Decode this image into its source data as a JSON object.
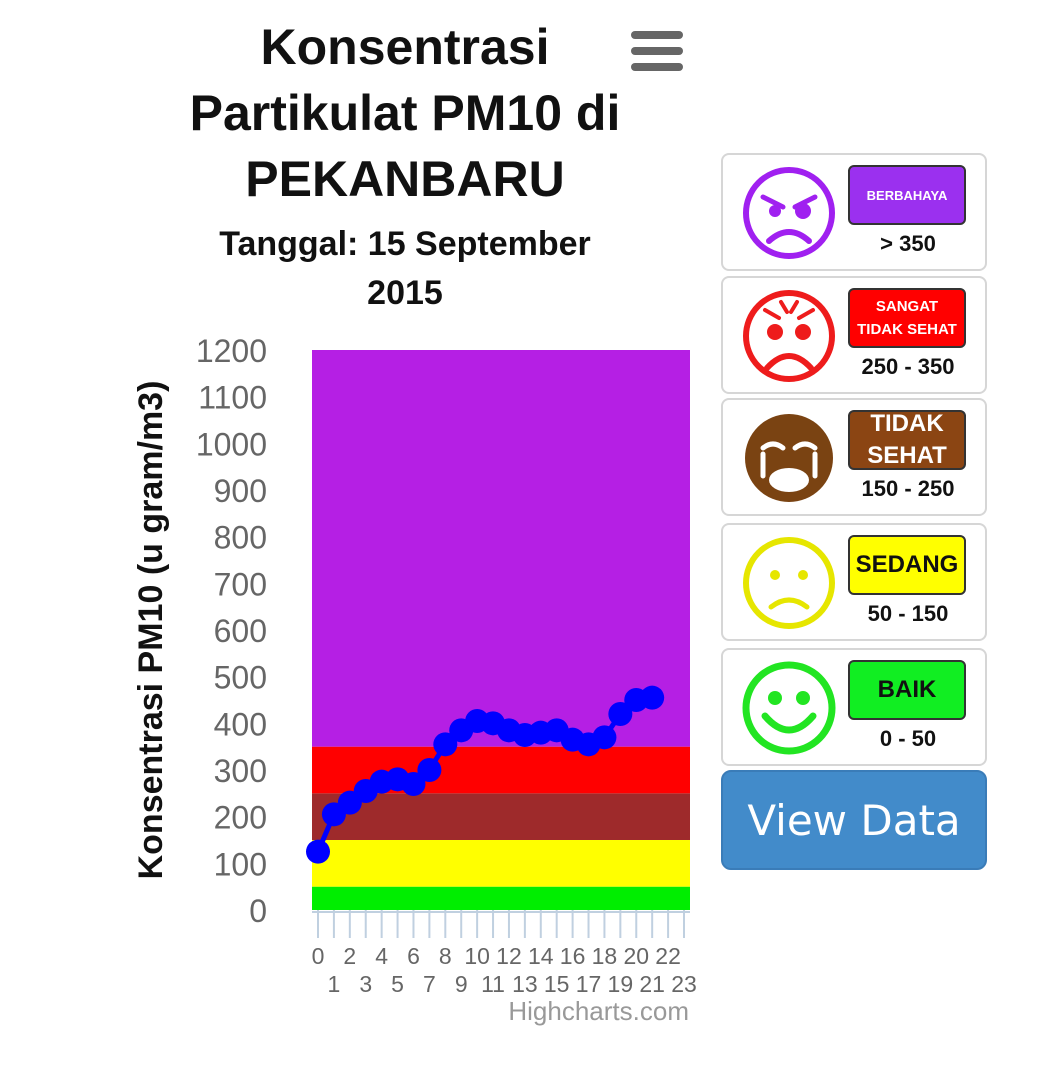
{
  "header": {
    "title": "Konsentrasi Partikulat PM10 di PEKANBARU",
    "subtitle": "Tanggal: 15 September 2015",
    "menu_icon": "hamburger-icon"
  },
  "chart_data": {
    "type": "line",
    "title": "Konsentrasi Partikulat PM10 di PEKANBARU",
    "subtitle": "Tanggal: 15 September 2015",
    "ylabel": "Konsentrasi PM10 (u gram/m3)",
    "xlabel": "",
    "ylim": [
      0,
      1200
    ],
    "yticks": [
      0,
      100,
      200,
      300,
      400,
      500,
      600,
      700,
      800,
      900,
      1000,
      1100,
      1200
    ],
    "xlim": [
      0,
      23
    ],
    "xticks": [
      "0",
      "1",
      "2",
      "3",
      "4",
      "5",
      "6",
      "7",
      "8",
      "9",
      "10",
      "11",
      "12",
      "13",
      "14",
      "15",
      "16",
      "17",
      "18",
      "19",
      "20",
      "21",
      "22",
      "23"
    ],
    "series": [
      {
        "x": [
          0,
          1,
          2,
          3,
          4,
          5,
          6,
          7,
          8,
          9,
          10,
          11,
          12,
          13,
          14,
          15,
          16,
          17,
          18,
          19,
          20,
          21
        ],
        "y": [
          125,
          205,
          230,
          255,
          275,
          280,
          270,
          300,
          355,
          385,
          405,
          400,
          385,
          375,
          380,
          385,
          365,
          355,
          370,
          420,
          450,
          455
        ],
        "color": "#0000ff"
      }
    ],
    "plot_bands": [
      {
        "from": 0,
        "to": 50,
        "color": "#00ee00"
      },
      {
        "from": 50,
        "to": 150,
        "color": "#ffff00"
      },
      {
        "from": 150,
        "to": 250,
        "color": "#9e2a2b"
      },
      {
        "from": 250,
        "to": 350,
        "color": "#ff0000"
      },
      {
        "from": 350,
        "to": 1200,
        "color": "#b51fe4"
      }
    ],
    "grid": false,
    "credits": "Highcharts.com"
  },
  "legend": [
    {
      "label": "BERBAHAYA",
      "range": "> 350",
      "color": "#9b30ef",
      "icon": "angry-face-icon",
      "face_color": "#a020f0"
    },
    {
      "label": "SANGAT TIDAK SEHAT",
      "range": "250 - 350",
      "color": "#ff0000",
      "icon": "distressed-face-icon",
      "face_color": "#ee1c1c"
    },
    {
      "label": "TIDAK SEHAT",
      "range": "150 - 250",
      "color": "#8b4513",
      "icon": "crying-face-icon",
      "face_color": "#7a4312"
    },
    {
      "label": "SEDANG",
      "range": "50 - 150",
      "color": "#ffff00",
      "icon": "sad-face-icon",
      "face_color": "#e6e600"
    },
    {
      "label": "BAIK",
      "range": "0 - 50",
      "color": "#11ee22",
      "icon": "smiley-face-icon",
      "face_color": "#22e522"
    }
  ],
  "buttons": {
    "view_data": "View Data"
  }
}
